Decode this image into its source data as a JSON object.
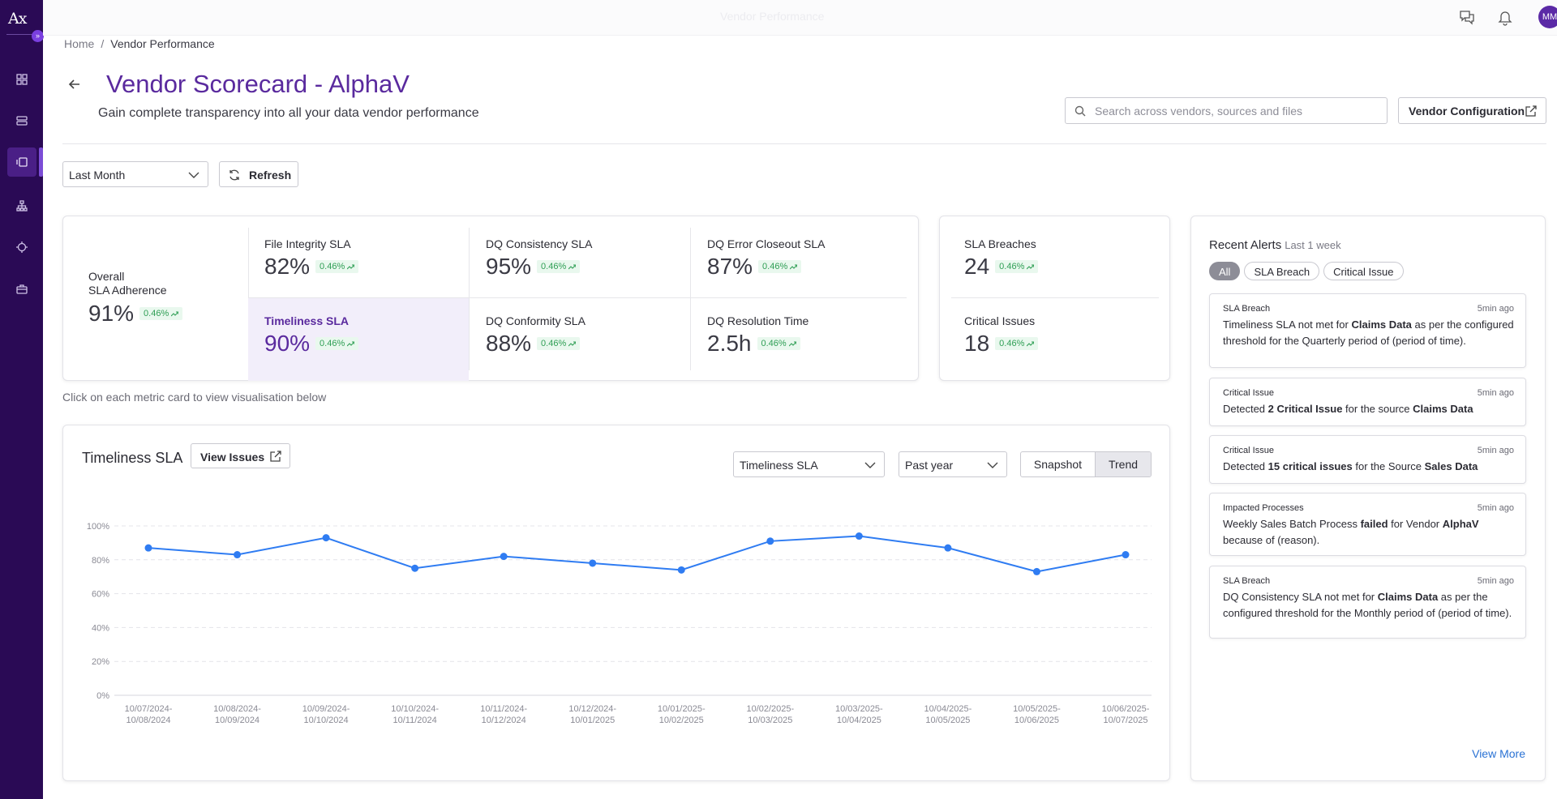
{
  "sidebar": {
    "logo": "Ax",
    "items": [
      {
        "icon": "dashboard-icon"
      },
      {
        "icon": "storage-icon"
      },
      {
        "icon": "vendor-icon",
        "active": true
      },
      {
        "icon": "hierarchy-icon"
      },
      {
        "icon": "target-icon"
      },
      {
        "icon": "briefcase-icon"
      }
    ]
  },
  "topbar": {
    "title": "Vendor Performance",
    "avatar_initials": "MM"
  },
  "breadcrumb": {
    "home": "Home",
    "separator": "/",
    "current": "Vendor Performance"
  },
  "header": {
    "title": "Vendor Scorecard - AlphaV",
    "subtitle": "Gain complete transparency into all your data vendor performance",
    "search_placeholder": "Search across vendors, sources and files",
    "vendor_config_label": "Vendor Configuration"
  },
  "filters": {
    "period": "Last Month",
    "refresh_label": "Refresh"
  },
  "metrics": {
    "overall": {
      "label_line1": "Overall",
      "label_line2": "SLA Adherence",
      "value": "91%",
      "delta": "0.46%"
    },
    "cells": [
      {
        "label": "File Integrity SLA",
        "value": "82%",
        "delta": "0.46%"
      },
      {
        "label": "DQ Consistency SLA",
        "value": "95%",
        "delta": "0.46%"
      },
      {
        "label": "DQ Error Closeout SLA",
        "value": "87%",
        "delta": "0.46%"
      },
      {
        "label": "Timeliness SLA",
        "value": "90%",
        "delta": "0.46%",
        "active": true
      },
      {
        "label": "DQ Conformity SLA",
        "value": "88%",
        "delta": "0.46%"
      },
      {
        "label": "DQ Resolution Time",
        "value": "2.5h",
        "delta": "0.46%"
      }
    ],
    "side": [
      {
        "label": "SLA Breaches",
        "value": "24",
        "delta": "0.46%"
      },
      {
        "label": "Critical Issues",
        "value": "18",
        "delta": "0.46%"
      }
    ],
    "hint": "Click on each metric card to view visualisation below"
  },
  "chart_panel": {
    "title": "Timeliness SLA",
    "view_issues_label": "View Issues",
    "metric_select": "Timeliness SLA",
    "range_select": "Past year",
    "toggle": {
      "snapshot": "Snapshot",
      "trend": "Trend"
    }
  },
  "chart_data": {
    "type": "line",
    "x": [
      [
        "10/07/2024-",
        "10/08/2024"
      ],
      [
        "10/08/2024-",
        "10/09/2024"
      ],
      [
        "10/09/2024-",
        "10/10/2024"
      ],
      [
        "10/10/2024-",
        "10/11/2024"
      ],
      [
        "10/11/2024-",
        "10/12/2024"
      ],
      [
        "10/12/2024-",
        "10/01/2025"
      ],
      [
        "10/01/2025-",
        "10/02/2025"
      ],
      [
        "10/02/2025-",
        "10/03/2025"
      ],
      [
        "10/03/2025-",
        "10/04/2025"
      ],
      [
        "10/04/2025-",
        "10/05/2025"
      ],
      [
        "10/05/2025-",
        "10/06/2025"
      ],
      [
        "10/06/2025-",
        "10/07/2025"
      ]
    ],
    "series": [
      {
        "values": [
          87,
          83,
          93,
          75,
          82,
          78,
          74,
          91,
          94,
          87,
          73,
          83
        ],
        "color": "#2f7cf2"
      }
    ],
    "yticks": [
      "100%",
      "80%",
      "60%",
      "40%",
      "20%",
      "0%"
    ],
    "ylim": [
      0,
      100
    ],
    "grid": true,
    "title": "",
    "xlabel": "",
    "ylabel": ""
  },
  "alerts": {
    "title": "Recent Alerts",
    "subtitle": "Last 1 week",
    "chips": [
      {
        "label": "All",
        "active": true
      },
      {
        "label": "SLA Breach"
      },
      {
        "label": "Critical Issue"
      }
    ],
    "items": [
      {
        "type": "SLA Breach",
        "time": "5min ago",
        "parts": [
          [
            "Timeliness SLA not met for ",
            false
          ],
          [
            " Claims Data ",
            true
          ],
          [
            " as per the configured threshold for the Quarterly period of (period of time).",
            false
          ]
        ]
      },
      {
        "type": "Critical Issue",
        "time": "5min ago",
        "parts": [
          [
            "Detected ",
            false
          ],
          [
            "2 Critical Issue",
            true
          ],
          [
            " for the source ",
            false
          ],
          [
            " Claims Data",
            true
          ]
        ]
      },
      {
        "type": "Critical Issue",
        "time": "5min ago",
        "parts": [
          [
            "Detected ",
            false
          ],
          [
            "15 critical issues",
            true
          ],
          [
            " for the Source ",
            false
          ],
          [
            " Sales Data",
            true
          ]
        ]
      },
      {
        "type": "Impacted Processes",
        "time": "5min ago",
        "parts": [
          [
            "Weekly Sales Batch Process ",
            false
          ],
          [
            "failed",
            true
          ],
          [
            " for Vendor ",
            false
          ],
          [
            " AlphaV",
            true
          ],
          [
            " because of (reason).",
            false
          ]
        ]
      },
      {
        "type": "SLA Breach",
        "time": "5min ago",
        "parts": [
          [
            "DQ Consistency SLA not met for ",
            false
          ],
          [
            " Claims Data ",
            true
          ],
          [
            " as per the configured threshold for the Monthly period of (period of time).",
            false
          ]
        ]
      }
    ],
    "view_more": "View More"
  },
  "colors": {
    "brand": "#5a2a9e",
    "sidebar": "#2a0a55",
    "line": "#2f7cf2",
    "positive": "#2e9e54",
    "link": "#2a72d4"
  }
}
